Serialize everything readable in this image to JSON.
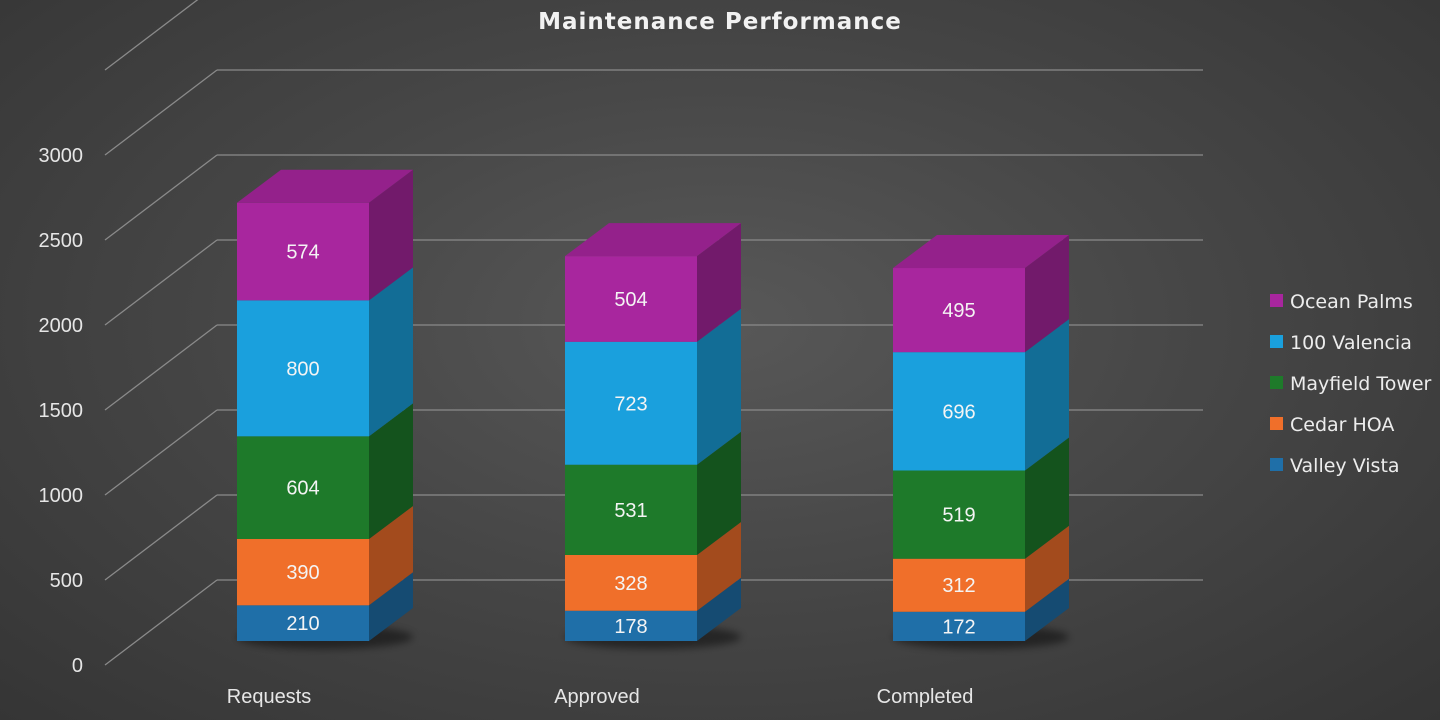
{
  "chart_data": {
    "type": "bar",
    "stacked": true,
    "three_d": true,
    "title": "Maintenance Performance",
    "categories": [
      "Requests",
      "Approved",
      "Completed"
    ],
    "series": [
      {
        "name": "Valley Vista",
        "values": [
          210,
          178,
          172
        ],
        "color": "#1f6fa8"
      },
      {
        "name": "Cedar HOA",
        "values": [
          390,
          328,
          312
        ],
        "color": "#f06f2a"
      },
      {
        "name": "Mayfield Tower",
        "values": [
          604,
          531,
          519
        ],
        "color": "#1e7a2a"
      },
      {
        "name": "100 Valencia",
        "values": [
          800,
          723,
          696
        ],
        "color": "#1aa0dd"
      },
      {
        "name": "Ocean Palms",
        "values": [
          574,
          504,
          495
        ],
        "color": "#a8269e"
      }
    ],
    "y_ticks": [
      "0",
      "500",
      "1000",
      "1500",
      "2000",
      "2500",
      "3000"
    ],
    "ylim": [
      0,
      3500
    ],
    "grid": true,
    "legend_position": "right"
  }
}
